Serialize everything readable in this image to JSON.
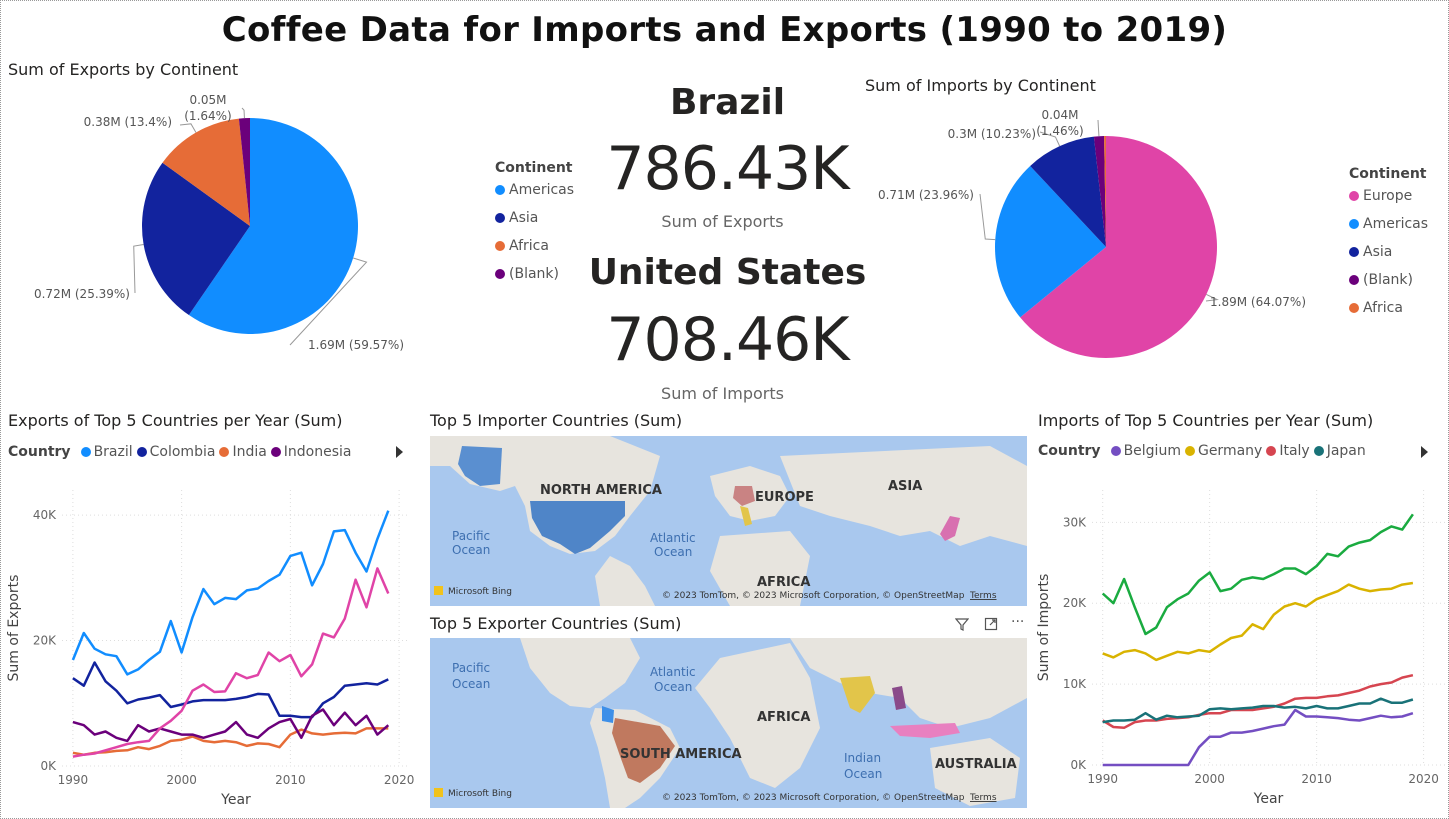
{
  "title": "Coffee Data for Imports and Exports (1990 to 2019)",
  "exports_pie": {
    "title": "Sum of Exports by Continent",
    "legend_title": "Continent",
    "legend": [
      {
        "label": "Americas",
        "color": "#118DFF"
      },
      {
        "label": "Asia",
        "color": "#12239E"
      },
      {
        "label": "Africa",
        "color": "#E66C37"
      },
      {
        "label": "(Blank)",
        "color": "#6B007B"
      }
    ],
    "slices": [
      {
        "name": "Americas",
        "value": 59.57,
        "color": "#118DFF",
        "label": "1.69M (59.57%)"
      },
      {
        "name": "Asia",
        "value": 25.39,
        "color": "#12239E",
        "label": "0.72M (25.39%)"
      },
      {
        "name": "Africa",
        "value": 13.4,
        "color": "#E66C37",
        "label": "0.38M (13.4%)"
      },
      {
        "name": "(Blank)",
        "value": 1.64,
        "color": "#6B007B",
        "label_a": "0.05M",
        "label_b": "(1.64%)"
      }
    ]
  },
  "kpi": {
    "exporter_name": "Brazil",
    "exporter_value": "786.43K",
    "exporter_label": "Sum of Exports",
    "importer_name": "United States",
    "importer_value": "708.46K",
    "importer_label": "Sum of Imports"
  },
  "imports_pie": {
    "title": "Sum of Imports by Continent",
    "legend_title": "Continent",
    "legend": [
      {
        "label": "Europe",
        "color": "#E044A7"
      },
      {
        "label": "Americas",
        "color": "#118DFF"
      },
      {
        "label": "Asia",
        "color": "#12239E"
      },
      {
        "label": "(Blank)",
        "color": "#6B007B"
      },
      {
        "label": "Africa",
        "color": "#E66C37"
      }
    ],
    "slices": [
      {
        "name": "Europe",
        "value": 64.07,
        "color": "#E044A7",
        "label": "1.89M (64.07%)"
      },
      {
        "name": "Americas",
        "value": 23.96,
        "color": "#118DFF",
        "label": "0.71M (23.96%)"
      },
      {
        "name": "Asia",
        "value": 10.23,
        "color": "#12239E",
        "label": "0.3M (10.23%)"
      },
      {
        "name": "(Blank)",
        "value": 1.46,
        "color": "#6B007B",
        "label_a": "0.04M",
        "label_b": "(1.46%)"
      },
      {
        "name": "Africa",
        "value": 0.28,
        "color": "#E66C37"
      }
    ]
  },
  "exports_line": {
    "title": "Exports of Top 5 Countries per Year (Sum)",
    "legend_title": "Country",
    "legend": [
      {
        "label": "Brazil",
        "color": "#118DFF"
      },
      {
        "label": "Colombia",
        "color": "#12239E"
      },
      {
        "label": "India",
        "color": "#E66C37"
      },
      {
        "label": "Indonesia",
        "color": "#6B007B"
      }
    ],
    "xlabel": "Year",
    "ylabel": "Sum of Exports"
  },
  "imports_line": {
    "title": "Imports of Top 5 Countries per Year (Sum)",
    "legend_title": "Country",
    "legend": [
      {
        "label": "Belgium",
        "color": "#744EC2"
      },
      {
        "label": "Germany",
        "color": "#D9B300"
      },
      {
        "label": "Italy",
        "color": "#D64550"
      },
      {
        "label": "Japan",
        "color": "#197278"
      }
    ],
    "xlabel": "Year",
    "ylabel": "Sum of Imports"
  },
  "importer_map": {
    "title": "Top 5 Importer Countries (Sum)",
    "labels": [
      "NORTH AMERICA",
      "EUROPE",
      "ASIA",
      "AFRICA"
    ],
    "oceans": [
      "Pacific",
      "Ocean",
      "Atlantic",
      "Ocean"
    ],
    "bing": "Microsoft Bing",
    "copyright": "© 2023 TomTom, © 2023 Microsoft Corporation, © OpenStreetMap",
    "terms": "Terms"
  },
  "exporter_map": {
    "title": "Top 5 Exporter Countries (Sum)",
    "labels": [
      "SOUTH AMERICA",
      "AFRICA",
      "AUSTRALIA"
    ],
    "oceans": [
      "Pacific",
      "Ocean",
      "Atlantic",
      "Ocean",
      "Indian",
      "Ocean"
    ],
    "bing": "Microsoft Bing",
    "copyright": "© 2023 TomTom, © 2023 Microsoft Corporation, © OpenStreetMap",
    "terms": "Terms",
    "more_icon": "···"
  },
  "chart_data": [
    {
      "type": "pie",
      "title": "Sum of Exports by Continent",
      "categories": [
        "Americas",
        "Asia",
        "Africa",
        "(Blank)"
      ],
      "values": [
        1.69,
        0.72,
        0.38,
        0.05
      ],
      "percent": [
        59.57,
        25.39,
        13.4,
        1.64
      ],
      "unit": "M"
    },
    {
      "type": "pie",
      "title": "Sum of Imports by Continent",
      "categories": [
        "Europe",
        "Americas",
        "Asia",
        "(Blank)",
        "Africa"
      ],
      "values": [
        1.89,
        0.71,
        0.3,
        0.04,
        0.01
      ],
      "percent": [
        64.07,
        23.96,
        10.23,
        1.46,
        0.28
      ],
      "unit": "M"
    },
    {
      "type": "line",
      "title": "Exports of Top 5 Countries per Year (Sum)",
      "xlabel": "Year",
      "ylabel": "Sum of Exports",
      "x": [
        1990,
        1991,
        1992,
        1993,
        1994,
        1995,
        1996,
        1997,
        1998,
        1999,
        2000,
        2001,
        2002,
        2003,
        2004,
        2005,
        2006,
        2007,
        2008,
        2009,
        2010,
        2011,
        2012,
        2013,
        2014,
        2015,
        2016,
        2017,
        2018,
        2019
      ],
      "xticks": [
        "1990",
        "2000",
        "2010",
        "2020"
      ],
      "yticks": [
        "0K",
        "20K",
        "40K"
      ],
      "xlim": [
        1989,
        2021
      ],
      "ylim": [
        0,
        44000
      ],
      "series": [
        {
          "name": "Brazil",
          "color": "#118DFF",
          "values": [
            16900,
            21200,
            18700,
            17800,
            17500,
            14600,
            15400,
            16900,
            18200,
            23100,
            18100,
            23700,
            28200,
            25800,
            26800,
            26600,
            28000,
            28300,
            29500,
            30500,
            33500,
            34000,
            28800,
            32200,
            37400,
            37600,
            34000,
            31000,
            36200,
            40700
          ]
        },
        {
          "name": "Colombia",
          "color": "#12239E",
          "values": [
            14000,
            12800,
            16500,
            13500,
            12000,
            10000,
            10600,
            10900,
            11300,
            9400,
            9800,
            10300,
            10500,
            10500,
            10500,
            10700,
            11000,
            11500,
            11400,
            8000,
            8000,
            7800,
            7800,
            10000,
            11000,
            12800,
            13000,
            13200,
            13000,
            13800
          ]
        },
        {
          "name": "India",
          "color": "#E66C37",
          "values": [
            2100,
            1800,
            2100,
            2200,
            2400,
            2500,
            3000,
            2700,
            3200,
            4000,
            4200,
            4700,
            4000,
            3800,
            4000,
            3800,
            3200,
            3600,
            3500,
            3000,
            5000,
            5800,
            5200,
            5000,
            5200,
            5300,
            5200,
            6000,
            6000,
            6000
          ]
        },
        {
          "name": "Indonesia",
          "color": "#6B007B",
          "values": [
            7000,
            6500,
            5000,
            5500,
            4500,
            4000,
            6500,
            5500,
            6000,
            5500,
            5000,
            5000,
            4500,
            5000,
            5500,
            7000,
            5000,
            4500,
            6000,
            7000,
            7500,
            4500,
            8000,
            9000,
            6500,
            8500,
            6500,
            8000,
            5000,
            6500
          ]
        },
        {
          "name": "",
          "color": "#E044A7",
          "values": [
            1500,
            1800,
            2000,
            2500,
            3000,
            3500,
            3800,
            4000,
            6000,
            7200,
            8800,
            12000,
            13000,
            11800,
            11900,
            14800,
            14000,
            14500,
            18100,
            16700,
            17700,
            14300,
            16200,
            21100,
            20500,
            23500,
            29700,
            25300,
            31500,
            27500
          ]
        }
      ]
    },
    {
      "type": "line",
      "title": "Imports of Top 5 Countries per Year (Sum)",
      "xlabel": "Year",
      "ylabel": "Sum of Imports",
      "x": [
        1990,
        1991,
        1992,
        1993,
        1994,
        1995,
        1996,
        1997,
        1998,
        1999,
        2000,
        2001,
        2002,
        2003,
        2004,
        2005,
        2006,
        2007,
        2008,
        2009,
        2010,
        2011,
        2012,
        2013,
        2014,
        2015,
        2016,
        2017,
        2018,
        2019
      ],
      "xticks": [
        "1990",
        "2000",
        "2010",
        "2020"
      ],
      "yticks": [
        "0K",
        "10K",
        "20K",
        "30K"
      ],
      "xlim": [
        1989,
        2022
      ],
      "ylim": [
        0,
        34000
      ],
      "series": [
        {
          "name": "Belgium",
          "color": "#744EC2",
          "values": [
            0,
            0,
            0,
            0,
            0,
            0,
            0,
            0,
            0,
            2200,
            3500,
            3500,
            4000,
            4000,
            4200,
            4500,
            4800,
            5000,
            6800,
            6000,
            6000,
            5900,
            5800,
            5600,
            5500,
            5800,
            6100,
            5900,
            6000,
            6400
          ]
        },
        {
          "name": "Germany",
          "color": "#D9B300",
          "values": [
            13800,
            13300,
            14000,
            14200,
            13800,
            13000,
            13500,
            14000,
            13800,
            14200,
            14000,
            14900,
            15700,
            16000,
            17400,
            16800,
            18600,
            19600,
            20000,
            19600,
            20500,
            21000,
            21500,
            22300,
            21800,
            21500,
            21700,
            21800,
            22300,
            22500
          ]
        },
        {
          "name": "Italy",
          "color": "#D64550",
          "values": [
            5500,
            4700,
            4600,
            5300,
            5500,
            5500,
            5700,
            5800,
            5900,
            6200,
            6400,
            6400,
            6800,
            6800,
            6800,
            7000,
            7200,
            7600,
            8200,
            8300,
            8300,
            8500,
            8600,
            8900,
            9200,
            9700,
            10000,
            10200,
            10800,
            11100
          ]
        },
        {
          "name": "Japan",
          "color": "#197278",
          "values": [
            5300,
            5500,
            5500,
            5600,
            6400,
            5600,
            6100,
            5900,
            6000,
            6100,
            6900,
            7000,
            6900,
            7000,
            7100,
            7300,
            7300,
            7100,
            7200,
            7000,
            7300,
            7000,
            7000,
            7300,
            7600,
            7600,
            8200,
            7700,
            7700,
            8100
          ]
        },
        {
          "name": "",
          "color": "#1AAB40",
          "values": [
            21200,
            20000,
            23000,
            19500,
            16200,
            17000,
            19500,
            20500,
            21200,
            22800,
            23800,
            21500,
            21800,
            22900,
            23200,
            23000,
            23600,
            24300,
            24300,
            23600,
            24600,
            26100,
            25800,
            27000,
            27500,
            27800,
            28800,
            29500,
            29100,
            31000
          ]
        }
      ]
    }
  ]
}
